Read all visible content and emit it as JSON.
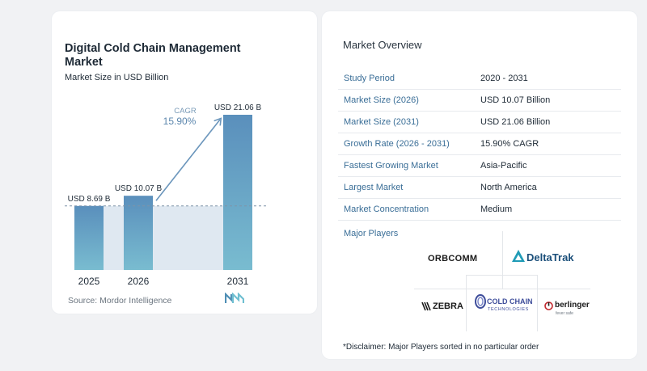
{
  "chart": {
    "title": "Digital Cold Chain Management Market",
    "subtitle": "Market Size in USD Billion",
    "source": "Source:  Mordor Intelligence",
    "cagr_label": "CAGR",
    "cagr_value": "15.90%"
  },
  "chart_data": {
    "type": "bar",
    "title": "Digital Cold Chain Management Market",
    "subtitle": "Market Size in USD Billion",
    "categories": [
      "2025",
      "2026",
      "2031"
    ],
    "values": [
      8.69,
      10.07,
      21.06
    ],
    "data_labels": [
      "USD 8.69 B",
      "USD 10.07 B",
      "USD 21.06 B"
    ],
    "ylim": [
      0,
      21.06
    ],
    "annotation": {
      "text": "CAGR 15.90%"
    },
    "colors": {
      "bar_top": "#5a8fbc",
      "bar_bottom": "#79bcd0",
      "shade": "#dfe8f1",
      "arrow": "#6b96bc"
    }
  },
  "overview": {
    "title": "Market Overview",
    "rows": [
      {
        "key": "Study Period",
        "value": "2020 - 2031"
      },
      {
        "key": "Market Size (2026)",
        "value": "USD 10.07 Billion"
      },
      {
        "key": "Market Size (2031)",
        "value": "USD 21.06 Billion"
      },
      {
        "key": "Growth Rate (2026 - 2031)",
        "value": "15.90% CAGR"
      },
      {
        "key": "Fastest Growing Market",
        "value": "Asia-Pacific"
      },
      {
        "key": "Largest Market",
        "value": "North America"
      },
      {
        "key": "Market Concentration",
        "value": "Medium"
      }
    ]
  },
  "players": {
    "title": "Major Players",
    "logos": [
      {
        "text": "ORBCOMM"
      },
      {
        "text": "DeltaTrak"
      },
      {
        "text": "ZEBRA"
      },
      {
        "text": "COLD CHAIN",
        "sub": "TECHNOLOGIES"
      },
      {
        "text": "berlinger",
        "sub": "fever safe"
      }
    ]
  },
  "disclaimer": "*Disclaimer: Major Players sorted in no particular order"
}
